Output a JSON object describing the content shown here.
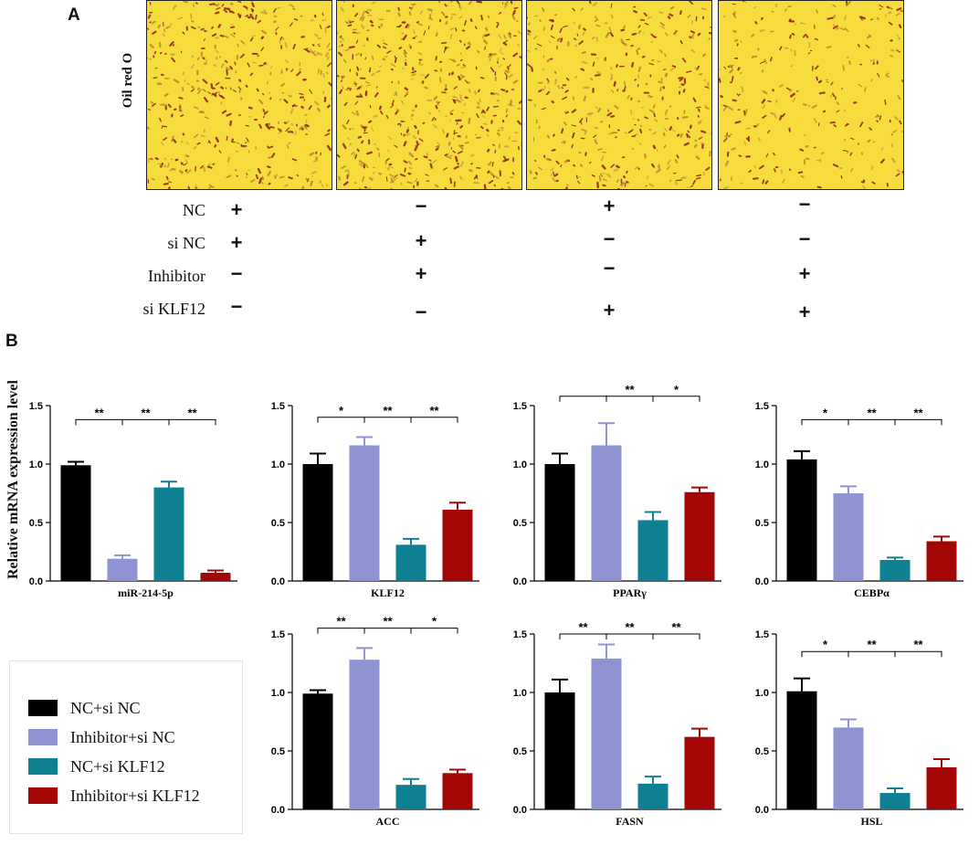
{
  "panel_a": {
    "letter": "A",
    "stain_label": "Oil red O",
    "conditions": [
      {
        "label": "NC",
        "signs": [
          "+",
          "−",
          "+",
          "−"
        ]
      },
      {
        "label": "si NC",
        "signs": [
          "+",
          "+",
          "−",
          "−"
        ]
      },
      {
        "label": "Inhibitor",
        "signs": [
          "−",
          "+",
          "−",
          "+"
        ]
      },
      {
        "label": "si KLF12",
        "signs": [
          "−",
          "−",
          "+",
          "+"
        ]
      }
    ]
  },
  "panel_b": {
    "letter": "B",
    "ylabel": "Relative mRNA expression level"
  },
  "colors": {
    "nc_si_nc": "#000000",
    "inhibitor_si_nc": "#8f93d2",
    "nc_si_klf12": "#0f7f92",
    "inhibitor_si_klf12": "#a30606",
    "stain_bg": "#f6dc3c",
    "stain_dot": "#8a1e16"
  },
  "legend": [
    {
      "label": "NC+si NC",
      "color": "#000000"
    },
    {
      "label": "Inhibitor+si NC",
      "color": "#8f93d2"
    },
    {
      "label": "NC+si KLF12",
      "color": "#0f7f92"
    },
    {
      "label": "Inhibitor+si KLF12",
      "color": "#a30606"
    }
  ],
  "chart_data": [
    {
      "type": "bar",
      "title": "miR-214-5p",
      "categories": [
        "NC+si NC",
        "Inhibitor+si NC",
        "NC+si KLF12",
        "Inhibitor+si KLF12"
      ],
      "values": [
        0.99,
        0.19,
        0.8,
        0.07
      ],
      "errors": [
        0.03,
        0.03,
        0.05,
        0.02
      ],
      "ylim": [
        0,
        1.5
      ],
      "yticks": [
        "0.0",
        "0.5",
        "1.0",
        "1.5"
      ],
      "sig": [
        {
          "from": 0,
          "to": 1,
          "label": "**"
        },
        {
          "from": 1,
          "to": 2,
          "label": "**"
        },
        {
          "from": 2,
          "to": 3,
          "label": "**"
        }
      ],
      "sig_y": 1.38
    },
    {
      "type": "bar",
      "title": "KLF12",
      "categories": [
        "NC+si NC",
        "Inhibitor+si NC",
        "NC+si KLF12",
        "Inhibitor+si KLF12"
      ],
      "values": [
        1.0,
        1.16,
        0.31,
        0.61
      ],
      "errors": [
        0.09,
        0.07,
        0.05,
        0.06
      ],
      "ylim": [
        0,
        1.5
      ],
      "yticks": [
        "0.0",
        "0.5",
        "1.0",
        "1.5"
      ],
      "sig": [
        {
          "from": 0,
          "to": 1,
          "label": "*"
        },
        {
          "from": 1,
          "to": 2,
          "label": "**"
        },
        {
          "from": 2,
          "to": 3,
          "label": "**"
        }
      ],
      "sig_y": 1.4
    },
    {
      "type": "bar",
      "title": "PPARγ",
      "categories": [
        "NC+si NC",
        "Inhibitor+si NC",
        "NC+si KLF12",
        "Inhibitor+si KLF12"
      ],
      "values": [
        1.0,
        1.16,
        0.52,
        0.76
      ],
      "errors": [
        0.09,
        0.19,
        0.07,
        0.04
      ],
      "ylim": [
        0,
        1.5
      ],
      "yticks": [
        "0.0",
        "0.5",
        "1.0",
        "1.5"
      ],
      "sig": [
        {
          "from": 0,
          "to": 1,
          "label": ""
        },
        {
          "from": 1,
          "to": 2,
          "label": "**"
        },
        {
          "from": 2,
          "to": 3,
          "label": "*"
        }
      ],
      "sig_y": 1.58
    },
    {
      "type": "bar",
      "title": "CEBPα",
      "categories": [
        "NC+si NC",
        "Inhibitor+si NC",
        "NC+si KLF12",
        "Inhibitor+si KLF12"
      ],
      "values": [
        1.04,
        0.75,
        0.18,
        0.34
      ],
      "errors": [
        0.07,
        0.06,
        0.02,
        0.04
      ],
      "ylim": [
        0,
        1.5
      ],
      "yticks": [
        "0.0",
        "0.5",
        "1.0",
        "1.5"
      ],
      "sig": [
        {
          "from": 0,
          "to": 1,
          "label": "*"
        },
        {
          "from": 1,
          "to": 2,
          "label": "**"
        },
        {
          "from": 2,
          "to": 3,
          "label": "**"
        }
      ],
      "sig_y": 1.38
    },
    {
      "type": "bar",
      "title": "ACC",
      "categories": [
        "NC+si NC",
        "Inhibitor+si NC",
        "NC+si KLF12",
        "Inhibitor+si KLF12"
      ],
      "values": [
        0.99,
        1.28,
        0.21,
        0.31
      ],
      "errors": [
        0.03,
        0.1,
        0.05,
        0.03
      ],
      "ylim": [
        0,
        1.5
      ],
      "yticks": [
        "0.0",
        "0.5",
        "1.0",
        "1.5"
      ],
      "sig": [
        {
          "from": 0,
          "to": 1,
          "label": "**"
        },
        {
          "from": 1,
          "to": 2,
          "label": "**"
        },
        {
          "from": 2,
          "to": 3,
          "label": "*"
        }
      ],
      "sig_y": 1.55
    },
    {
      "type": "bar",
      "title": "FASN",
      "categories": [
        "NC+si NC",
        "Inhibitor+si NC",
        "NC+si KLF12",
        "Inhibitor+si KLF12"
      ],
      "values": [
        1.0,
        1.29,
        0.22,
        0.62
      ],
      "errors": [
        0.11,
        0.12,
        0.06,
        0.07
      ],
      "ylim": [
        0,
        1.5
      ],
      "yticks": [
        "0.0",
        "0.5",
        "1.0",
        "1.5"
      ],
      "sig": [
        {
          "from": 0,
          "to": 1,
          "label": "**"
        },
        {
          "from": 1,
          "to": 2,
          "label": "**"
        },
        {
          "from": 2,
          "to": 3,
          "label": "**"
        }
      ],
      "sig_y": 1.5
    },
    {
      "type": "bar",
      "title": "HSL",
      "categories": [
        "NC+si NC",
        "Inhibitor+si NC",
        "NC+si KLF12",
        "Inhibitor+si KLF12"
      ],
      "values": [
        1.01,
        0.7,
        0.14,
        0.36
      ],
      "errors": [
        0.11,
        0.07,
        0.04,
        0.07
      ],
      "ylim": [
        0,
        1.5
      ],
      "yticks": [
        "0.0",
        "0.5",
        "1.0",
        "1.5"
      ],
      "sig": [
        {
          "from": 0,
          "to": 1,
          "label": "*"
        },
        {
          "from": 1,
          "to": 2,
          "label": "**"
        },
        {
          "from": 2,
          "to": 3,
          "label": "**"
        }
      ],
      "sig_y": 1.35
    }
  ]
}
